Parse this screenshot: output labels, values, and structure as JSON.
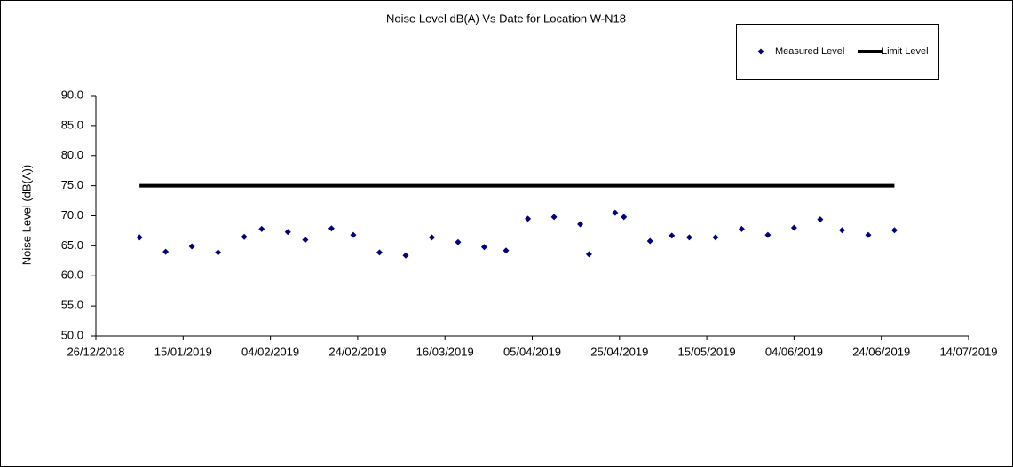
{
  "chart_data": {
    "type": "scatter",
    "title": "Noise Level dB(A) Vs Date for Location W-N18",
    "y_label": "Noise Level (dB(A))",
    "xlim": [
      "2018-12-26",
      "2019-07-14"
    ],
    "xticks": [
      {
        "value": "2018-12-26",
        "label": "26/12/2018"
      },
      {
        "value": "2019-01-15",
        "label": "15/01/2019"
      },
      {
        "value": "2019-02-04",
        "label": "04/02/2019"
      },
      {
        "value": "2019-02-24",
        "label": "24/02/2019"
      },
      {
        "value": "2019-03-16",
        "label": "16/03/2019"
      },
      {
        "value": "2019-04-05",
        "label": "05/04/2019"
      },
      {
        "value": "2019-04-25",
        "label": "25/04/2019"
      },
      {
        "value": "2019-05-15",
        "label": "15/05/2019"
      },
      {
        "value": "2019-06-04",
        "label": "04/06/2019"
      },
      {
        "value": "2019-06-24",
        "label": "24/06/2019"
      },
      {
        "value": "2019-07-14",
        "label": "14/07/2019"
      }
    ],
    "ylim": [
      50,
      90
    ],
    "yticks": [
      {
        "value": 50,
        "label": "50.0"
      },
      {
        "value": 55,
        "label": "55.0"
      },
      {
        "value": 60,
        "label": "60.0"
      },
      {
        "value": 65,
        "label": "65.0"
      },
      {
        "value": 70,
        "label": "70.0"
      },
      {
        "value": 75,
        "label": "75.0"
      },
      {
        "value": 80,
        "label": "80.0"
      },
      {
        "value": 85,
        "label": "85.0"
      },
      {
        "value": 90,
        "label": "90.0"
      }
    ],
    "grid": false,
    "legend": "top-right",
    "series": [
      {
        "name": "Measured Level",
        "color": "#000080",
        "mode": "markers",
        "x": [
          "2019-01-05",
          "2019-01-11",
          "2019-01-17",
          "2019-01-23",
          "2019-01-29",
          "2019-02-02",
          "2019-02-08",
          "2019-02-12",
          "2019-02-18",
          "2019-02-23",
          "2019-03-01",
          "2019-03-07",
          "2019-03-13",
          "2019-03-19",
          "2019-03-25",
          "2019-03-30",
          "2019-04-04",
          "2019-04-10",
          "2019-04-16",
          "2019-04-18",
          "2019-04-24",
          "2019-04-26",
          "2019-05-02",
          "2019-05-07",
          "2019-05-11",
          "2019-05-17",
          "2019-05-23",
          "2019-05-29",
          "2019-06-04",
          "2019-06-10",
          "2019-06-15",
          "2019-06-21",
          "2019-06-27"
        ],
        "values": [
          66.4,
          64.0,
          64.9,
          63.9,
          66.5,
          67.8,
          67.3,
          66.0,
          67.9,
          66.8,
          63.9,
          63.4,
          66.4,
          65.6,
          64.8,
          64.2,
          69.5,
          69.8,
          68.6,
          63.6,
          70.5,
          69.8,
          65.8,
          66.7,
          66.4,
          66.4,
          67.8,
          66.8,
          68.0,
          69.4,
          67.6,
          66.8,
          67.6
        ]
      },
      {
        "name": "Limit Level",
        "color": "#000000",
        "mode": "line",
        "x": [
          "2019-01-05",
          "2019-06-27"
        ],
        "values": [
          75,
          75
        ]
      }
    ]
  }
}
